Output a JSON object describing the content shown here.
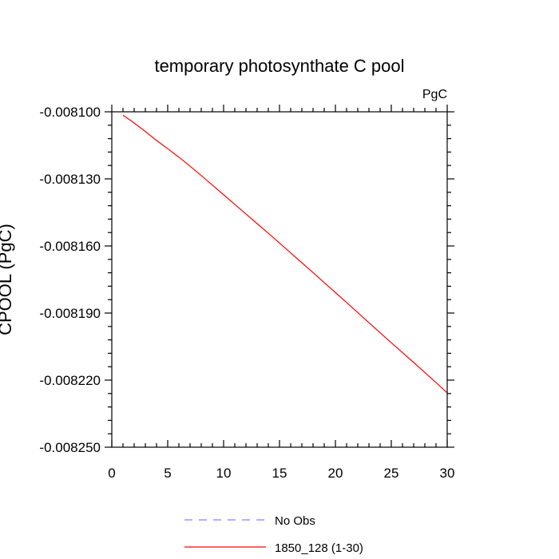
{
  "chart_data": {
    "type": "line",
    "title": "temporary photosynthate C pool",
    "units_label": "PgC",
    "xlabel": "",
    "ylabel": "CPOOL  (PgC)",
    "xlim": [
      0,
      30
    ],
    "ylim": [
      -0.00825,
      -0.0081
    ],
    "xticks": [
      0,
      5,
      10,
      15,
      20,
      25,
      30
    ],
    "xtick_labels": [
      "0",
      "5",
      "10",
      "15",
      "20",
      "25",
      "30"
    ],
    "xminor_step": 1,
    "yticks": [
      -0.0081,
      -0.00813,
      -0.00816,
      -0.00819,
      -0.00822,
      -0.00825
    ],
    "ytick_labels": [
      "-0.008100",
      "-0.008130",
      "-0.008160",
      "-0.008190",
      "-0.008220",
      "-0.008250"
    ],
    "yminor_step": 6e-06,
    "grid": false,
    "legend_position": "bottom-center",
    "series": [
      {
        "name": "No Obs",
        "color": "#8080ff",
        "dash": "dashed",
        "x": [],
        "y": []
      },
      {
        "name": "1850_128 (1-30)",
        "color": "#ff0000",
        "dash": "solid",
        "x": [
          1,
          2,
          3,
          4,
          5,
          6,
          7,
          8,
          9,
          10,
          11,
          12,
          13,
          14,
          15,
          16,
          17,
          18,
          19,
          20,
          21,
          22,
          23,
          24,
          25,
          26,
          27,
          28,
          29,
          30
        ],
        "y": [
          -0.0081015,
          -0.008105,
          -0.0081088,
          -0.0081128,
          -0.0081165,
          -0.0081203,
          -0.0081243,
          -0.0081285,
          -0.0081328,
          -0.0081371,
          -0.0081414,
          -0.0081457,
          -0.00815,
          -0.0081543,
          -0.0081587,
          -0.0081631,
          -0.0081675,
          -0.0081719,
          -0.0081764,
          -0.0081808,
          -0.0081853,
          -0.0081898,
          -0.0081943,
          -0.0081988,
          -0.0082033,
          -0.0082077,
          -0.0082121,
          -0.0082166,
          -0.0082211,
          -0.0082257
        ]
      }
    ]
  }
}
